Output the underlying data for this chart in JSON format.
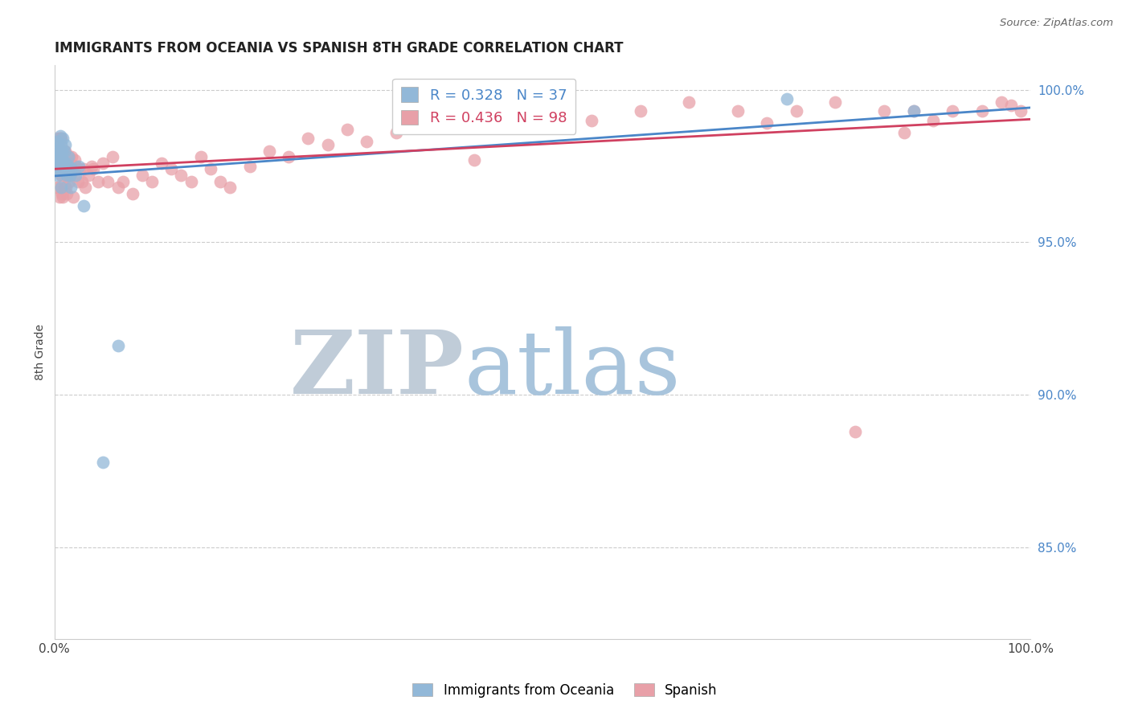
{
  "title": "IMMIGRANTS FROM OCEANIA VS SPANISH 8TH GRADE CORRELATION CHART",
  "source": "Source: ZipAtlas.com",
  "ylabel": "8th Grade",
  "xmin": 0.0,
  "xmax": 1.0,
  "ymin": 0.82,
  "ymax": 1.008,
  "yticks": [
    0.85,
    0.9,
    0.95,
    1.0
  ],
  "ytick_labels": [
    "85.0%",
    "90.0%",
    "95.0%",
    "100.0%"
  ],
  "blue_R": 0.328,
  "blue_N": 37,
  "pink_R": 0.436,
  "pink_N": 98,
  "blue_color": "#92b8d8",
  "pink_color": "#e8a0a8",
  "blue_line_color": "#4a86c8",
  "pink_line_color": "#d04060",
  "watermark_zip_color": "#c8d8e8",
  "watermark_atlas_color": "#a8c8e8",
  "blue_scatter_x": [
    0.001,
    0.002,
    0.003,
    0.003,
    0.004,
    0.004,
    0.004,
    0.005,
    0.005,
    0.006,
    0.006,
    0.006,
    0.007,
    0.007,
    0.007,
    0.007,
    0.008,
    0.008,
    0.009,
    0.009,
    0.01,
    0.01,
    0.011,
    0.012,
    0.013,
    0.014,
    0.015,
    0.016,
    0.017,
    0.018,
    0.022,
    0.025,
    0.03,
    0.05,
    0.065,
    0.75,
    0.88
  ],
  "blue_scatter_y": [
    0.974,
    0.978,
    0.983,
    0.976,
    0.982,
    0.978,
    0.972,
    0.98,
    0.975,
    0.985,
    0.98,
    0.975,
    0.982,
    0.978,
    0.974,
    0.968,
    0.98,
    0.976,
    0.984,
    0.977,
    0.98,
    0.974,
    0.982,
    0.976,
    0.972,
    0.978,
    0.975,
    0.972,
    0.968,
    0.974,
    0.972,
    0.975,
    0.962,
    0.878,
    0.916,
    0.997,
    0.993
  ],
  "pink_scatter_x": [
    0.001,
    0.001,
    0.002,
    0.002,
    0.003,
    0.003,
    0.003,
    0.004,
    0.004,
    0.004,
    0.005,
    0.005,
    0.005,
    0.006,
    0.006,
    0.006,
    0.007,
    0.007,
    0.007,
    0.008,
    0.008,
    0.008,
    0.009,
    0.009,
    0.01,
    0.01,
    0.01,
    0.011,
    0.011,
    0.012,
    0.012,
    0.013,
    0.013,
    0.014,
    0.015,
    0.015,
    0.016,
    0.017,
    0.018,
    0.019,
    0.02,
    0.021,
    0.022,
    0.024,
    0.026,
    0.028,
    0.03,
    0.032,
    0.035,
    0.038,
    0.04,
    0.045,
    0.05,
    0.055,
    0.06,
    0.065,
    0.07,
    0.08,
    0.09,
    0.1,
    0.11,
    0.12,
    0.13,
    0.14,
    0.15,
    0.16,
    0.17,
    0.18,
    0.2,
    0.22,
    0.24,
    0.26,
    0.28,
    0.3,
    0.32,
    0.35,
    0.38,
    0.4,
    0.43,
    0.46,
    0.5,
    0.55,
    0.6,
    0.65,
    0.7,
    0.73,
    0.76,
    0.8,
    0.82,
    0.85,
    0.87,
    0.88,
    0.9,
    0.92,
    0.95,
    0.97,
    0.98,
    0.99
  ],
  "pink_scatter_y": [
    0.982,
    0.976,
    0.983,
    0.978,
    0.984,
    0.975,
    0.968,
    0.982,
    0.975,
    0.968,
    0.984,
    0.975,
    0.965,
    0.982,
    0.974,
    0.984,
    0.979,
    0.972,
    0.984,
    0.978,
    0.972,
    0.966,
    0.978,
    0.965,
    0.98,
    0.974,
    0.968,
    0.98,
    0.974,
    0.976,
    0.968,
    0.974,
    0.966,
    0.972,
    0.978,
    0.97,
    0.976,
    0.972,
    0.978,
    0.965,
    0.974,
    0.977,
    0.975,
    0.97,
    0.974,
    0.97,
    0.974,
    0.968,
    0.972,
    0.975,
    0.974,
    0.97,
    0.976,
    0.97,
    0.978,
    0.968,
    0.97,
    0.966,
    0.972,
    0.97,
    0.976,
    0.974,
    0.972,
    0.97,
    0.978,
    0.974,
    0.97,
    0.968,
    0.975,
    0.98,
    0.978,
    0.984,
    0.982,
    0.987,
    0.983,
    0.986,
    0.988,
    0.99,
    0.977,
    0.993,
    0.995,
    0.99,
    0.993,
    0.996,
    0.993,
    0.989,
    0.993,
    0.996,
    0.888,
    0.993,
    0.986,
    0.993,
    0.99,
    0.993,
    0.993,
    0.996,
    0.995,
    0.993
  ]
}
